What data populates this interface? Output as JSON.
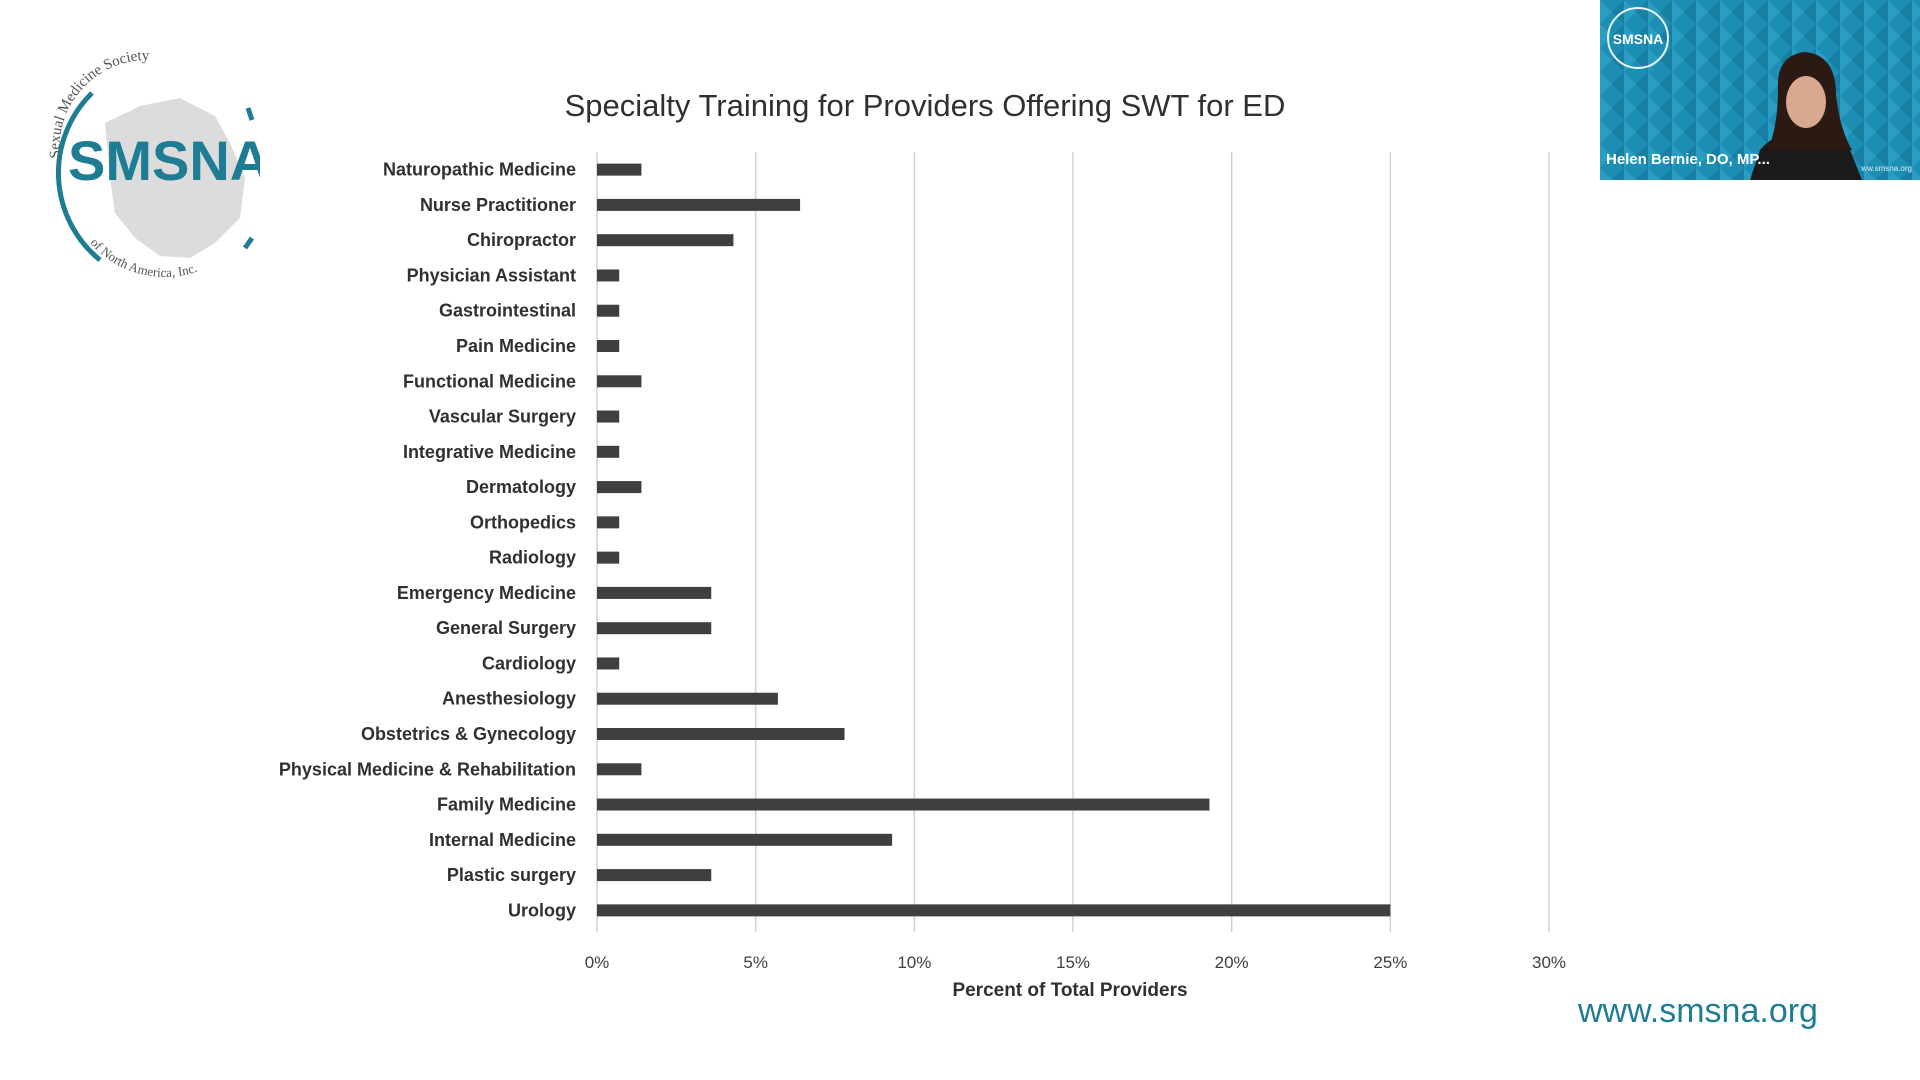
{
  "slide": {
    "logo": {
      "name": "SMSNA",
      "arc_top": "Sexual Medicine Society",
      "arc_bottom": "of North America, Inc.",
      "color": "#1e7c93"
    },
    "website": "www.smsna.org"
  },
  "video_tile": {
    "participant_name": "Helen Bernie, DO, MP...",
    "logo_text": "SMSNA",
    "url_text": "ww.smsna.org",
    "background": "#1e8fb4"
  },
  "chart_data": {
    "type": "bar",
    "orientation": "horizontal",
    "title": "Specialty Training for Providers Offering SWT for ED",
    "xlabel": "Percent of Total Providers",
    "ylabel": "",
    "xlim": [
      0,
      30
    ],
    "x_ticks": [
      "0%",
      "5%",
      "10%",
      "15%",
      "20%",
      "25%",
      "30%"
    ],
    "grid": "vertical",
    "legend": "none",
    "bar_color": "#3f3f3f",
    "categories": [
      "Naturopathic Medicine",
      "Nurse Practitioner",
      "Chiropractor",
      "Physician Assistant",
      "Gastrointestinal",
      "Pain Medicine",
      "Functional Medicine",
      "Vascular Surgery",
      "Integrative Medicine",
      "Dermatology",
      "Orthopedics",
      "Radiology",
      "Emergency Medicine",
      "General Surgery",
      "Cardiology",
      "Anesthesiology",
      "Obstetrics & Gynecology",
      "Physical Medicine & Rehabilitation",
      "Family Medicine",
      "Internal Medicine",
      "Plastic surgery",
      "Urology"
    ],
    "values": [
      1.4,
      6.4,
      4.3,
      0.7,
      0.7,
      0.7,
      1.4,
      0.7,
      0.7,
      1.4,
      0.7,
      0.7,
      3.6,
      3.6,
      0.7,
      5.7,
      7.8,
      1.4,
      19.3,
      9.3,
      3.6,
      25.0
    ]
  }
}
